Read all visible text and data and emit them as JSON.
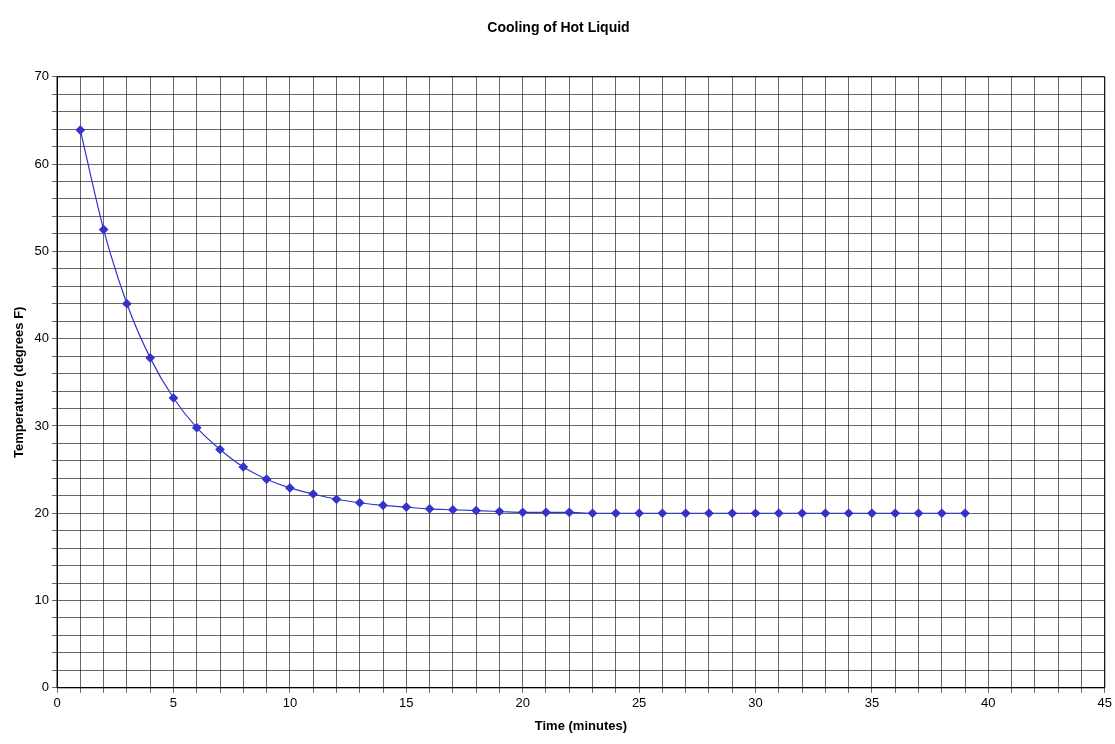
{
  "chart_data": {
    "type": "line",
    "title": "Cooling of Hot Liquid",
    "xlabel": "Time (minutes)",
    "ylabel": "Temperature (degrees F)",
    "x": [
      1,
      2,
      3,
      4,
      5,
      6,
      7,
      8,
      9,
      10,
      11,
      12,
      13,
      14,
      15,
      16,
      17,
      18,
      19,
      20,
      21,
      22,
      23,
      24,
      25,
      26,
      27,
      28,
      29,
      30,
      31,
      32,
      33,
      34,
      35,
      36,
      37,
      38,
      39
    ],
    "series": [
      {
        "color": "#3333cc",
        "values": [
          63.9,
          52.5,
          44.0,
          37.8,
          33.2,
          29.8,
          27.3,
          25.3,
          23.9,
          22.9,
          22.2,
          21.6,
          21.2,
          20.9,
          20.7,
          20.5,
          20.4,
          20.3,
          20.2,
          20.1,
          20.1,
          20.1,
          20.0,
          20.0,
          20.0,
          20.0,
          20.0,
          20.0,
          20.0,
          20.0,
          20.0,
          20.0,
          20.0,
          20.0,
          20.0,
          20.0,
          20.0,
          20.0,
          20.0
        ]
      }
    ],
    "xlim": [
      0,
      45
    ],
    "xticks": [
      0,
      {
        "value": 1,
        "label": null
      },
      {
        "value": 2,
        "label": null
      },
      {
        "value": 3,
        "label": null
      },
      {
        "value": 4,
        "label": null
      },
      5,
      {
        "value": 6,
        "label": null
      },
      {
        "value": 7,
        "label": null
      },
      {
        "value": 8,
        "label": null
      },
      {
        "value": 9,
        "label": null
      },
      10,
      {
        "value": 11,
        "label": null
      },
      {
        "value": 12,
        "label": null
      },
      {
        "value": 13,
        "label": null
      },
      {
        "value": 14,
        "label": null
      },
      15,
      {
        "value": 16,
        "label": null
      },
      {
        "value": 17,
        "label": null
      },
      {
        "value": 18,
        "label": null
      },
      {
        "value": 19,
        "label": null
      },
      20,
      {
        "value": 21,
        "label": null
      },
      {
        "value": 22,
        "label": null
      },
      {
        "value": 23,
        "label": null
      },
      {
        "value": 24,
        "label": null
      },
      25,
      {
        "value": 26,
        "label": null
      },
      {
        "value": 27,
        "label": null
      },
      {
        "value": 28,
        "label": null
      },
      {
        "value": 29,
        "label": null
      },
      30,
      {
        "value": 31,
        "label": null
      },
      {
        "value": 32,
        "label": null
      },
      {
        "value": 33,
        "label": null
      },
      {
        "value": 34,
        "label": null
      },
      35,
      {
        "value": 36,
        "label": null
      },
      {
        "value": 37,
        "label": null
      },
      {
        "value": 38,
        "label": null
      },
      {
        "value": 39,
        "label": null
      },
      40,
      {
        "value": 41,
        "label": null
      },
      {
        "value": 42,
        "label": null
      },
      {
        "value": 43,
        "label": null
      },
      {
        "value": 44,
        "label": null
      },
      45
    ],
    "ylim": [
      0,
      70
    ],
    "yticks": [
      0,
      {
        "value": 2,
        "label": null
      },
      {
        "value": 4,
        "label": null
      },
      {
        "value": 6,
        "label": null
      },
      {
        "value": 8,
        "label": null
      },
      10,
      {
        "value": 12,
        "label": null
      },
      {
        "value": 14,
        "label": null
      },
      {
        "value": 16,
        "label": null
      },
      {
        "value": 18,
        "label": null
      },
      20,
      {
        "value": 22,
        "label": null
      },
      {
        "value": 24,
        "label": null
      },
      {
        "value": 26,
        "label": null
      },
      {
        "value": 28,
        "label": null
      },
      30,
      {
        "value": 32,
        "label": null
      },
      {
        "value": 34,
        "label": null
      },
      {
        "value": 36,
        "label": null
      },
      {
        "value": 38,
        "label": null
      },
      40,
      {
        "value": 42,
        "label": null
      },
      {
        "value": 44,
        "label": null
      },
      {
        "value": 46,
        "label": null
      },
      {
        "value": 48,
        "label": null
      },
      50,
      {
        "value": 52,
        "label": null
      },
      {
        "value": 54,
        "label": null
      },
      {
        "value": 56,
        "label": null
      },
      {
        "value": 58,
        "label": null
      },
      60,
      {
        "value": 62,
        "label": null
      },
      {
        "value": 64,
        "label": null
      },
      {
        "value": 66,
        "label": null
      },
      {
        "value": 68,
        "label": null
      },
      70
    ],
    "grid": true,
    "legend": false,
    "marker": "diamond",
    "line_style": "solid"
  }
}
